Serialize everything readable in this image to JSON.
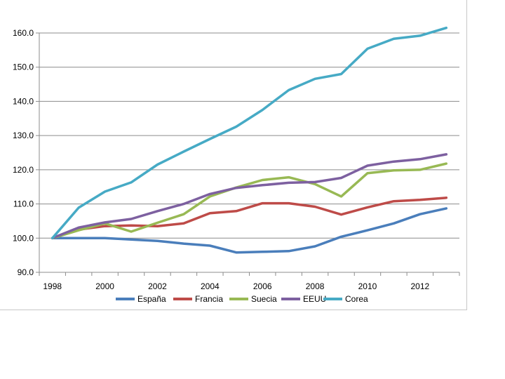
{
  "chart_data": {
    "type": "line",
    "title": "",
    "xlabel": "",
    "ylabel": "",
    "x": [
      1998,
      1999,
      2000,
      2001,
      2002,
      2003,
      2004,
      2005,
      2006,
      2007,
      2008,
      2009,
      2010,
      2011,
      2012,
      2013
    ],
    "xticks": [
      "1998",
      "2000",
      "2002",
      "2004",
      "2006",
      "2008",
      "2010",
      "2012"
    ],
    "yticks": [
      "90.0",
      "100.0",
      "110.0",
      "120.0",
      "130.0",
      "140.0",
      "150.0",
      "160.0"
    ],
    "ylim": [
      90,
      160
    ],
    "grid": "horizontal",
    "legend_position": "bottom",
    "series": [
      {
        "name": "España",
        "color": "#4a7ebb",
        "values": [
          100.0,
          100.0,
          100.0,
          99.6,
          99.2,
          98.4,
          97.8,
          95.8,
          96.0,
          96.2,
          97.6,
          100.4,
          102.3,
          104.3,
          107.0,
          108.7
        ]
      },
      {
        "name": "Francia",
        "color": "#be4b48",
        "values": [
          100.0,
          102.5,
          103.5,
          103.7,
          103.5,
          104.3,
          107.3,
          107.9,
          110.2,
          110.2,
          109.2,
          106.9,
          109.0,
          110.8,
          111.2,
          111.8
        ]
      },
      {
        "name": "Suecia",
        "color": "#98b954",
        "values": [
          100.0,
          102.3,
          104.3,
          101.9,
          104.5,
          107.0,
          112.2,
          114.8,
          117.0,
          117.8,
          115.8,
          112.2,
          119.0,
          119.8,
          120.0,
          121.8
        ]
      },
      {
        "name": "EEUU",
        "color": "#7d60a0",
        "values": [
          100.0,
          103.1,
          104.6,
          105.6,
          107.9,
          110.0,
          112.9,
          114.7,
          115.5,
          116.2,
          116.4,
          117.6,
          121.2,
          122.4,
          123.1,
          124.5
        ]
      },
      {
        "name": "Corea",
        "color": "#46aac5",
        "values": [
          100.0,
          108.9,
          113.6,
          116.3,
          121.5,
          125.3,
          129.0,
          132.6,
          137.5,
          143.3,
          146.6,
          148.0,
          155.4,
          158.3,
          159.2,
          161.5
        ]
      }
    ]
  }
}
